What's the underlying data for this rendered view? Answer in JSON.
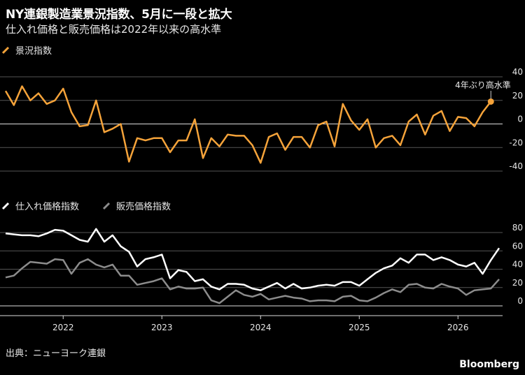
{
  "header": {
    "title": "NY連銀製造業景況指数、5月に一段と拡大",
    "subtitle": "仕入れ価格と販売価格は2022年以来の高水準"
  },
  "footer": {
    "source": "出典：ニューヨーク連銀",
    "brand": "Bloomberg"
  },
  "colors": {
    "orange": "#f5a33a",
    "white": "#ffffff",
    "gray": "#8c8c8c",
    "grid": "#555555",
    "zero": "#dddddd"
  },
  "chart_data": [
    {
      "type": "line",
      "title": "",
      "x_start": "2021-06",
      "x_tick_labels": [
        "2022",
        "2023",
        "2024",
        "2025",
        "2026"
      ],
      "ylim": [
        -40,
        40
      ],
      "y_ticks": [
        40,
        20,
        0,
        -20,
        -40
      ],
      "annotation": "4年ぶり高水準",
      "series": [
        {
          "name": "景況指数",
          "color": "#f5a33a",
          "values": [
            28,
            16,
            32,
            20,
            26,
            17,
            20,
            30,
            10,
            -2,
            -1,
            20,
            -7,
            -4,
            0,
            -32,
            -12,
            -14,
            -12,
            -12,
            -24,
            -14,
            -14,
            4,
            -29,
            -12,
            -19,
            -9,
            -10,
            -10,
            -18,
            -33,
            -11,
            -8,
            -22,
            -11,
            -11,
            -20,
            -1,
            2,
            -19,
            17,
            3,
            -5,
            4,
            -20,
            -12,
            -10,
            -18,
            2,
            8,
            -9,
            7,
            11,
            -6,
            6,
            5,
            -2,
            10,
            19
          ]
        }
      ]
    },
    {
      "type": "line",
      "title": "",
      "x_start": "2021-06",
      "x_tick_labels": [
        "2022",
        "2023",
        "2024",
        "2025",
        "2026"
      ],
      "ylim": [
        -5,
        80
      ],
      "y_ticks": [
        80,
        60,
        40,
        20,
        0
      ],
      "series": [
        {
          "name": "仕入れ価格指数",
          "color": "#ffffff",
          "values": [
            79,
            78,
            77,
            77,
            76,
            79,
            83,
            82,
            77,
            72,
            70,
            84,
            70,
            77,
            65,
            59,
            43,
            51,
            53,
            56,
            30,
            39,
            37,
            27,
            29,
            21,
            18,
            24,
            24,
            23,
            19,
            17,
            21,
            25,
            19,
            24,
            19,
            20,
            22,
            23,
            22,
            26,
            26,
            22,
            29,
            36,
            41,
            44,
            52,
            47,
            56,
            56,
            50,
            53,
            50,
            45,
            43,
            47,
            35,
            50,
            63
          ]
        },
        {
          "name": "販売価格指数",
          "color": "#8c8c8c",
          "values": [
            31,
            33,
            41,
            48,
            47,
            46,
            51,
            50,
            35,
            47,
            51,
            45,
            42,
            45,
            33,
            33,
            23,
            25,
            27,
            30,
            18,
            21,
            19,
            19,
            20,
            6,
            3,
            10,
            17,
            12,
            10,
            13,
            7,
            9,
            11,
            9,
            8,
            5,
            6,
            6,
            5,
            10,
            11,
            6,
            5,
            9,
            14,
            18,
            15,
            23,
            24,
            20,
            19,
            24,
            21,
            19,
            12,
            17,
            18,
            19,
            29
          ]
        }
      ]
    }
  ]
}
